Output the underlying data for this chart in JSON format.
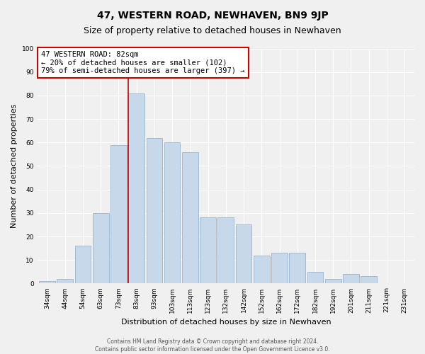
{
  "title": "47, WESTERN ROAD, NEWHAVEN, BN9 9JP",
  "subtitle": "Size of property relative to detached houses in Newhaven",
  "xlabel": "Distribution of detached houses by size in Newhaven",
  "ylabel": "Number of detached properties",
  "categories": [
    "34sqm",
    "44sqm",
    "54sqm",
    "63sqm",
    "73sqm",
    "83sqm",
    "93sqm",
    "103sqm",
    "113sqm",
    "123sqm",
    "132sqm",
    "142sqm",
    "152sqm",
    "162sqm",
    "172sqm",
    "182sqm",
    "192sqm",
    "201sqm",
    "211sqm",
    "221sqm",
    "231sqm"
  ],
  "values": [
    1,
    2,
    16,
    30,
    59,
    81,
    62,
    60,
    56,
    28,
    28,
    25,
    12,
    13,
    13,
    5,
    2,
    4,
    3,
    0,
    0
  ],
  "bar_color": "#c8d8eb",
  "bar_edge_color": "#9ab5cc",
  "vline_bar_index": 5,
  "annotation_line1": "47 WESTERN ROAD: 82sqm",
  "annotation_line2": "← 20% of detached houses are smaller (102)",
  "annotation_line3": "79% of semi-detached houses are larger (397) →",
  "annotation_box_color": "#ffffff",
  "annotation_box_edge": "#cc0000",
  "vline_color": "#cc0000",
  "ylim": [
    0,
    100
  ],
  "footer1": "Contains HM Land Registry data © Crown copyright and database right 2024.",
  "footer2": "Contains public sector information licensed under the Open Government Licence v3.0.",
  "background_color": "#f0f0f0",
  "grid_color": "#ffffff",
  "title_fontsize": 10,
  "subtitle_fontsize": 9,
  "tick_fontsize": 6.5,
  "ylabel_fontsize": 8,
  "xlabel_fontsize": 8,
  "annotation_fontsize": 7.5,
  "footer_fontsize": 5.5
}
